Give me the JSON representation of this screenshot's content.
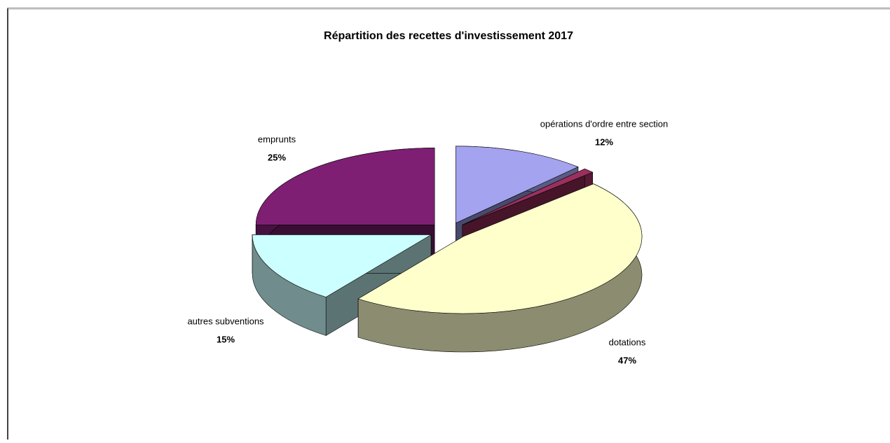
{
  "chart_data": {
    "type": "pie",
    "title": "Répartition des recettes d'investissement 2017",
    "categories": [
      "opérations d'ordre entre section",
      null,
      "dotations",
      "autres subventions",
      "emprunts"
    ],
    "values": [
      12,
      1,
      47,
      15,
      25
    ],
    "value_labels": [
      "12%",
      null,
      "47%",
      "15%",
      "25%"
    ],
    "colors": [
      "#a3a3f0",
      "#9b2f5e",
      "#ffffcc",
      "#ccffff",
      "#7f1f74"
    ]
  }
}
